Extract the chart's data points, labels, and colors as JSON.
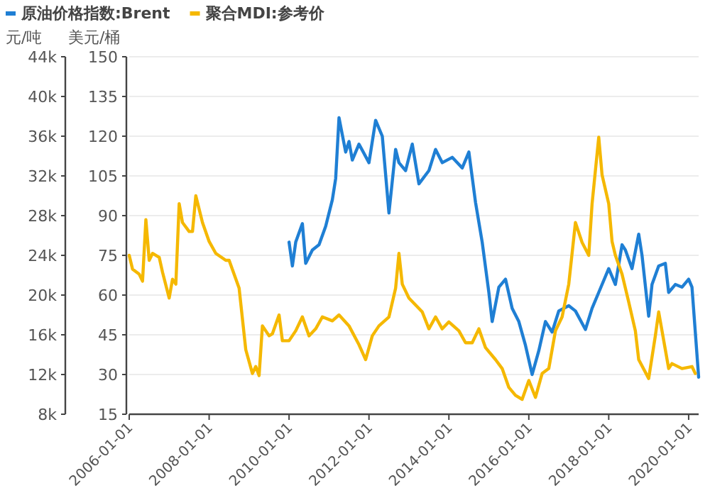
{
  "chart_data": {
    "type": "line",
    "ylabel": "元/吨",
    "y2label": "美元/桶",
    "xlim": [
      "2006-01",
      "2020-04"
    ],
    "xticks": [
      {
        "value": "2006-01-01",
        "label": "2006-01-01"
      },
      {
        "value": "2008-01-01",
        "label": "2008-01-01"
      },
      {
        "value": "2010-01-01",
        "label": "2010-01-01"
      },
      {
        "value": "2012-01-01",
        "label": "2012-01-01"
      },
      {
        "value": "2014-01-01",
        "label": "2014-01-01"
      },
      {
        "value": "2016-01-01",
        "label": "2016-01-01"
      },
      {
        "value": "2018-01-01",
        "label": "2018-01-01"
      },
      {
        "value": "2020-01-01",
        "label": "2020-01-01"
      }
    ],
    "ylim": [
      8000,
      44000
    ],
    "yticks": [
      {
        "value": 8000,
        "label": "8k"
      },
      {
        "value": 12000,
        "label": "12k"
      },
      {
        "value": 16000,
        "label": "16k"
      },
      {
        "value": 20000,
        "label": "20k"
      },
      {
        "value": 24000,
        "label": "24k"
      },
      {
        "value": 28000,
        "label": "28k"
      },
      {
        "value": 32000,
        "label": "32k"
      },
      {
        "value": 36000,
        "label": "36k"
      },
      {
        "value": 40000,
        "label": "40k"
      },
      {
        "value": 44000,
        "label": "44k"
      }
    ],
    "y2lim": [
      15,
      150
    ],
    "y2ticks": [
      15,
      30,
      45,
      60,
      75,
      90,
      105,
      120,
      135,
      150
    ],
    "grid": "y",
    "legend": "top left",
    "series": [
      {
        "name": "原油价格指数:Brent",
        "color": "#1f7fd4",
        "axis": "y2",
        "x": [
          "2010-01",
          "2010-02",
          "2010-03",
          "2010-05",
          "2010-06",
          "2010-08",
          "2010-10",
          "2010-12",
          "2011-02",
          "2011-03",
          "2011-04",
          "2011-06",
          "2011-07",
          "2011-08",
          "2011-10",
          "2012-01",
          "2012-03",
          "2012-05",
          "2012-07",
          "2012-09",
          "2012-10",
          "2012-12",
          "2013-02",
          "2013-04",
          "2013-07",
          "2013-09",
          "2013-11",
          "2014-02",
          "2014-05",
          "2014-07",
          "2014-09",
          "2014-11",
          "2015-01",
          "2015-02",
          "2015-04",
          "2015-06",
          "2015-08",
          "2015-10",
          "2015-12",
          "2016-02",
          "2016-04",
          "2016-06",
          "2016-08",
          "2016-10",
          "2017-01",
          "2017-03",
          "2017-06",
          "2017-08",
          "2017-10",
          "2018-01",
          "2018-03",
          "2018-05",
          "2018-06",
          "2018-08",
          "2018-10",
          "2018-11",
          "2019-01",
          "2019-02",
          "2019-04",
          "2019-06",
          "2019-07",
          "2019-09",
          "2019-11",
          "2020-01",
          "2020-02",
          "2020-04"
        ],
        "values": [
          80,
          71,
          80,
          87,
          72,
          77,
          79,
          86,
          96,
          104,
          127,
          114,
          118,
          111,
          117,
          110,
          126,
          120,
          91,
          115,
          110,
          107,
          117,
          102,
          107,
          115,
          110,
          112,
          108,
          114,
          95,
          80,
          61,
          50,
          63,
          66,
          55,
          50,
          41,
          30,
          39,
          50,
          46,
          54,
          56,
          54,
          47,
          55,
          61,
          70,
          64,
          79,
          77,
          70,
          83,
          75,
          52,
          64,
          71,
          72,
          61,
          64,
          63,
          66,
          63,
          29
        ]
      },
      {
        "name": "聚合MDI:参考价",
        "color": "#f5b800",
        "axis": "y",
        "x": [
          "2006-01",
          "2006-02",
          "2006-04",
          "2006-05",
          "2006-06",
          "2006-07",
          "2006-08",
          "2006-10",
          "2006-11",
          "2007-01",
          "2007-02",
          "2007-03",
          "2007-04",
          "2007-05",
          "2007-07",
          "2007-08",
          "2007-09",
          "2007-11",
          "2008-01",
          "2008-03",
          "2008-06",
          "2008-07",
          "2008-10",
          "2008-12",
          "2009-02",
          "2009-03",
          "2009-04",
          "2009-05",
          "2009-07",
          "2009-08",
          "2009-10",
          "2009-11",
          "2010-01",
          "2010-03",
          "2010-05",
          "2010-07",
          "2010-09",
          "2010-11",
          "2011-02",
          "2011-04",
          "2011-07",
          "2011-10",
          "2011-12",
          "2012-02",
          "2012-04",
          "2012-07",
          "2012-09",
          "2012-10",
          "2012-11",
          "2013-01",
          "2013-03",
          "2013-05",
          "2013-07",
          "2013-09",
          "2013-11",
          "2014-01",
          "2014-04",
          "2014-06",
          "2014-08",
          "2014-10",
          "2014-12",
          "2015-03",
          "2015-05",
          "2015-07",
          "2015-09",
          "2015-11",
          "2016-01",
          "2016-03",
          "2016-05",
          "2016-07",
          "2016-09",
          "2016-11",
          "2017-01",
          "2017-03",
          "2017-05",
          "2017-07",
          "2017-08",
          "2017-10",
          "2017-11",
          "2018-01",
          "2018-02",
          "2018-03",
          "2018-05",
          "2018-07",
          "2018-09",
          "2018-10",
          "2019-01",
          "2019-03",
          "2019-04",
          "2019-06",
          "2019-07",
          "2019-08",
          "2019-11",
          "2020-02",
          "2020-03"
        ],
        "values": [
          24000,
          22600,
          22100,
          21400,
          27600,
          23500,
          24200,
          23800,
          22300,
          19700,
          21600,
          21100,
          29200,
          27300,
          26400,
          26400,
          30000,
          27300,
          25400,
          24200,
          23500,
          23500,
          20700,
          14500,
          12100,
          12800,
          11900,
          16900,
          15900,
          16100,
          18000,
          15400,
          15400,
          16400,
          17800,
          15900,
          16600,
          17800,
          17400,
          18000,
          16900,
          15000,
          13500,
          15900,
          16900,
          17800,
          20700,
          24200,
          21100,
          19700,
          19000,
          18300,
          16600,
          17800,
          16600,
          17300,
          16400,
          15200,
          15200,
          16600,
          14700,
          13500,
          12600,
          10700,
          9900,
          9500,
          11400,
          9700,
          12100,
          12600,
          16400,
          17800,
          21100,
          27300,
          25300,
          24000,
          29200,
          35900,
          32100,
          29200,
          25400,
          24000,
          22100,
          19300,
          16400,
          13500,
          11600,
          15900,
          18300,
          14500,
          12600,
          13100,
          12600,
          12800,
          12100
        ]
      }
    ]
  }
}
